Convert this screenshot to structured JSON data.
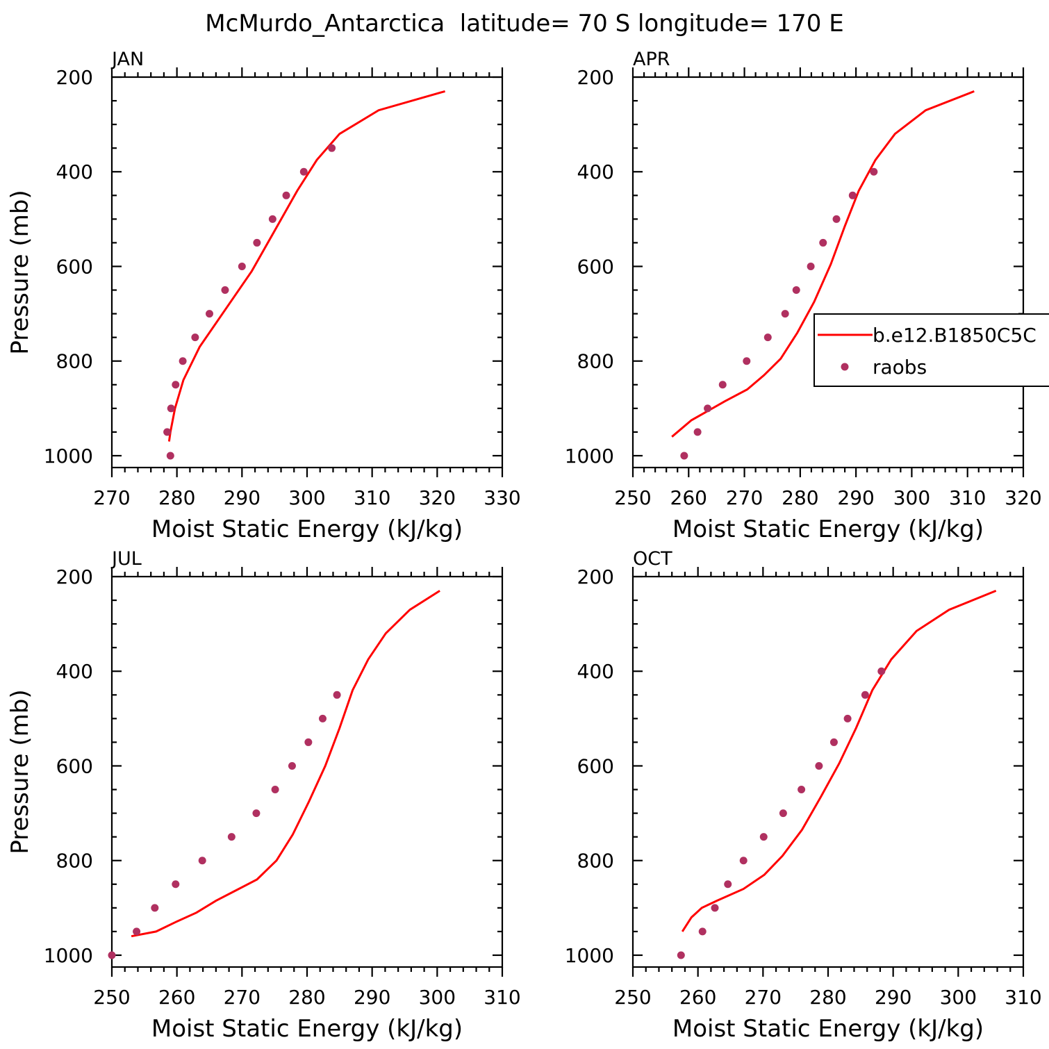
{
  "title": "McMurdo_Antarctica  latitude= 70 S longitude= 170 E",
  "colors": {
    "model": "#ff0000",
    "obs": "#b03060",
    "axis": "#000000"
  },
  "legend": {
    "model_label": "b.e12.B1850C5C",
    "obs_label": "raobs"
  },
  "chart_data": [
    {
      "type": "line",
      "panel_label": "JAN",
      "xlabel": "Moist Static Energy (kJ/kg)",
      "ylabel": "Pressure (mb)",
      "xlim": [
        270,
        330
      ],
      "ylim": [
        1025,
        200
      ],
      "xticks": [
        270,
        280,
        290,
        300,
        310,
        320,
        330
      ],
      "yticks": [
        200,
        400,
        600,
        800,
        1000
      ],
      "series": [
        {
          "name": "b.e12.B1850C5C",
          "kind": "line",
          "x": [
            321.2,
            311.0,
            305.0,
            301.5,
            298.5,
            295.0,
            291.5,
            287.5,
            283.5,
            281.0,
            279.7,
            279.0,
            278.8
          ],
          "y": [
            230,
            270,
            320,
            375,
            440,
            525,
            610,
            690,
            770,
            840,
            900,
            950,
            970
          ]
        },
        {
          "name": "raobs",
          "kind": "scatter",
          "x": [
            303.8,
            299.5,
            296.8,
            294.7,
            292.3,
            290.0,
            287.4,
            285.0,
            282.8,
            280.9,
            279.8,
            279.1,
            278.5,
            279.0
          ],
          "y": [
            350,
            400,
            450,
            500,
            550,
            600,
            650,
            700,
            750,
            800,
            850,
            900,
            950,
            1000
          ]
        }
      ]
    },
    {
      "type": "line",
      "panel_label": "APR",
      "xlabel": "Moist Static Energy (kJ/kg)",
      "ylabel": "",
      "xlim": [
        250,
        320
      ],
      "ylim": [
        1025,
        200
      ],
      "xticks": [
        250,
        260,
        270,
        280,
        290,
        300,
        310,
        320
      ],
      "yticks": [
        200,
        400,
        600,
        800,
        1000
      ],
      "series": [
        {
          "name": "b.e12.B1850C5C",
          "kind": "line",
          "x": [
            311.2,
            302.5,
            297.0,
            293.5,
            290.5,
            288.0,
            285.5,
            282.5,
            279.5,
            276.5,
            273.5,
            270.5,
            266.5,
            260.5,
            257.0
          ],
          "y": [
            230,
            270,
            320,
            375,
            440,
            515,
            595,
            675,
            740,
            795,
            830,
            860,
            885,
            925,
            960
          ]
        },
        {
          "name": "raobs",
          "kind": "scatter",
          "x": [
            293.2,
            289.4,
            286.5,
            284.1,
            281.9,
            279.3,
            277.3,
            274.2,
            270.4,
            266.1,
            263.4,
            261.6,
            259.2
          ],
          "y": [
            400,
            450,
            500,
            550,
            600,
            650,
            700,
            750,
            800,
            850,
            900,
            950,
            1000
          ]
        }
      ]
    },
    {
      "type": "line",
      "panel_label": "JUL",
      "xlabel": "Moist Static Energy (kJ/kg)",
      "ylabel": "Pressure (mb)",
      "xlim": [
        250,
        310
      ],
      "ylim": [
        1025,
        200
      ],
      "xticks": [
        250,
        260,
        270,
        280,
        290,
        300,
        310
      ],
      "yticks": [
        200,
        400,
        600,
        800,
        1000
      ],
      "series": [
        {
          "name": "b.e12.B1850C5C",
          "kind": "line",
          "x": [
            300.4,
            295.8,
            292.1,
            289.4,
            287.0,
            285.0,
            282.8,
            280.3,
            277.8,
            275.3,
            272.3,
            268.8,
            266.0,
            263.0,
            259.8,
            256.8,
            253.0
          ],
          "y": [
            230,
            270,
            320,
            375,
            440,
            520,
            600,
            675,
            745,
            800,
            840,
            865,
            885,
            910,
            930,
            950,
            960
          ]
        },
        {
          "name": "raobs",
          "kind": "scatter",
          "x": [
            284.6,
            282.4,
            280.2,
            277.7,
            275.1,
            272.2,
            268.4,
            263.9,
            259.8,
            256.6,
            253.8,
            250.0
          ],
          "y": [
            450,
            500,
            550,
            600,
            650,
            700,
            750,
            800,
            850,
            900,
            950,
            1000
          ]
        }
      ]
    },
    {
      "type": "line",
      "panel_label": "OCT",
      "xlabel": "Moist Static Energy (kJ/kg)",
      "ylabel": "",
      "xlim": [
        250,
        310
      ],
      "ylim": [
        1025,
        200
      ],
      "xticks": [
        250,
        260,
        270,
        280,
        290,
        300,
        310
      ],
      "yticks": [
        200,
        400,
        600,
        800,
        1000
      ],
      "series": [
        {
          "name": "b.e12.B1850C5C",
          "kind": "line",
          "x": [
            305.8,
            298.6,
            293.6,
            289.7,
            286.8,
            284.3,
            281.7,
            278.9,
            276.0,
            273.0,
            270.2,
            267.0,
            262.9,
            260.6,
            259.0,
            257.6
          ],
          "y": [
            230,
            270,
            315,
            375,
            440,
            520,
            595,
            665,
            735,
            790,
            830,
            860,
            885,
            900,
            920,
            950
          ]
        },
        {
          "name": "raobs",
          "kind": "scatter",
          "x": [
            288.2,
            285.7,
            283.0,
            280.9,
            278.6,
            275.9,
            273.1,
            270.1,
            267.0,
            264.6,
            262.6,
            260.7,
            257.4
          ],
          "y": [
            400,
            450,
            500,
            550,
            600,
            650,
            700,
            750,
            800,
            850,
            900,
            950,
            1000
          ]
        }
      ]
    }
  ]
}
